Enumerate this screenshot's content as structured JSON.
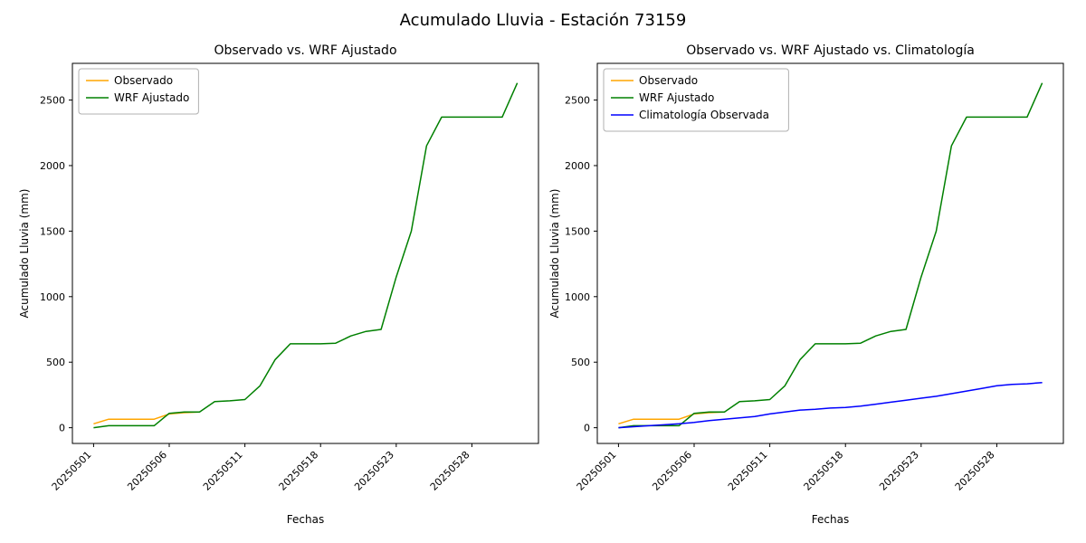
{
  "figure": {
    "title": "Acumulado Lluvia - Estación 73159"
  },
  "chart_data": [
    {
      "type": "line",
      "title": "Observado vs. WRF Ajustado",
      "xlabel": "Fechas",
      "ylabel": "Acumulado Lluvia (mm)",
      "grid": false,
      "legend_position": "upper left",
      "x_categories": [
        "20250501",
        "20250502",
        "20250503",
        "20250504",
        "20250505",
        "20250506",
        "20250507",
        "20250508",
        "20250509",
        "20250510",
        "20250511",
        "20250513",
        "20250515",
        "20250516",
        "20250517",
        "20250518",
        "20250519",
        "20250520",
        "20250521",
        "20250522",
        "20250523",
        "20250524",
        "20250525",
        "20250526",
        "20250527",
        "20250528",
        "20250529",
        "20250530",
        "20250531"
      ],
      "x_tick_indices": [
        0,
        5,
        10,
        15,
        20,
        25
      ],
      "x_tick_labels": [
        "20250501",
        "20250506",
        "20250511",
        "20250518",
        "20250523",
        "20250528"
      ],
      "y_ticks": [
        0,
        500,
        1000,
        1500,
        2000,
        2500
      ],
      "xlim": [
        -1.4,
        29.4
      ],
      "ylim": [
        -120,
        2780
      ],
      "series": [
        {
          "name": "Observado",
          "color": "#ffa500",
          "values": [
            30,
            65,
            65,
            65,
            65,
            105,
            115,
            120
          ]
        },
        {
          "name": "WRF Ajustado",
          "color": "#008000",
          "values": [
            0,
            15,
            15,
            15,
            15,
            110,
            120,
            120,
            200,
            205,
            215,
            320,
            520,
            640,
            640,
            640,
            645,
            700,
            735,
            750,
            1150,
            1500,
            2150,
            2370,
            2370,
            2370,
            2370,
            2370,
            2630
          ]
        }
      ]
    },
    {
      "type": "line",
      "title": "Observado vs. WRF Ajustado vs. Climatología",
      "xlabel": "Fechas",
      "ylabel": "Acumulado Lluvia (mm)",
      "grid": false,
      "legend_position": "upper left",
      "x_categories": [
        "20250501",
        "20250502",
        "20250503",
        "20250504",
        "20250505",
        "20250506",
        "20250507",
        "20250508",
        "20250509",
        "20250510",
        "20250511",
        "20250513",
        "20250515",
        "20250516",
        "20250517",
        "20250518",
        "20250519",
        "20250520",
        "20250521",
        "20250522",
        "20250523",
        "20250524",
        "20250525",
        "20250526",
        "20250527",
        "20250528",
        "20250529",
        "20250530",
        "20250531"
      ],
      "x_tick_indices": [
        0,
        5,
        10,
        15,
        20,
        25
      ],
      "x_tick_labels": [
        "20250501",
        "20250506",
        "20250511",
        "20250518",
        "20250523",
        "20250528"
      ],
      "y_ticks": [
        0,
        500,
        1000,
        1500,
        2000,
        2500
      ],
      "xlim": [
        -1.4,
        29.4
      ],
      "ylim": [
        -120,
        2780
      ],
      "series": [
        {
          "name": "Observado",
          "color": "#ffa500",
          "values": [
            30,
            65,
            65,
            65,
            65,
            105,
            115,
            120
          ]
        },
        {
          "name": "WRF Ajustado",
          "color": "#008000",
          "values": [
            0,
            15,
            15,
            15,
            15,
            110,
            120,
            120,
            200,
            205,
            215,
            320,
            520,
            640,
            640,
            640,
            645,
            700,
            735,
            750,
            1150,
            1500,
            2150,
            2370,
            2370,
            2370,
            2370,
            2370,
            2630
          ]
        },
        {
          "name": "Climatología Observada",
          "color": "#0000ff",
          "values": [
            0,
            8,
            15,
            22,
            30,
            40,
            55,
            65,
            75,
            85,
            105,
            120,
            135,
            140,
            150,
            155,
            165,
            180,
            195,
            210,
            225,
            240,
            260,
            280,
            300,
            320,
            330,
            335,
            345
          ]
        }
      ]
    }
  ]
}
